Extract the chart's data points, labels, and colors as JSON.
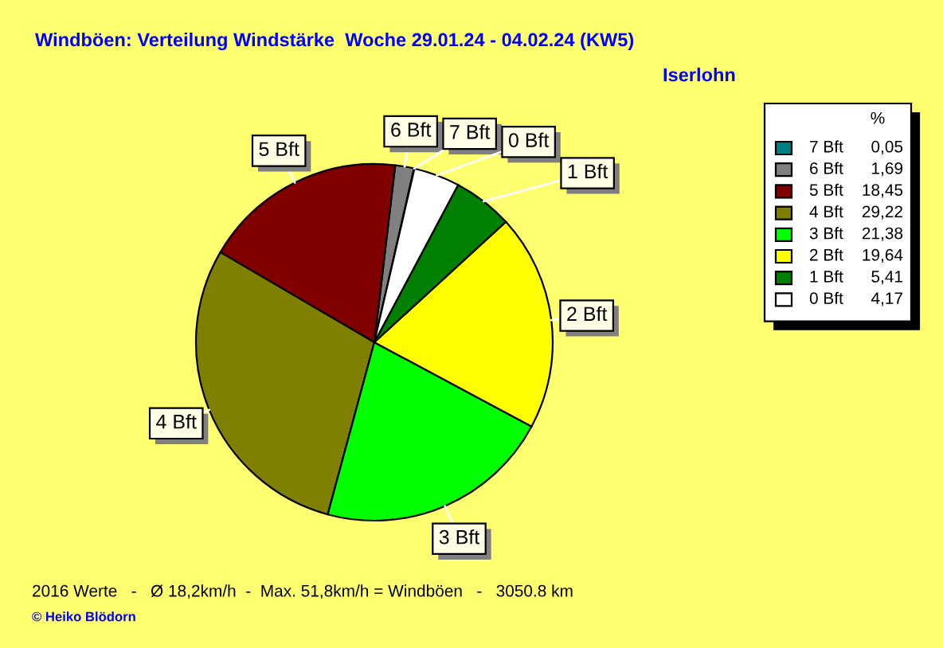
{
  "chart_data": {
    "type": "pie",
    "title": "Windböen: Verteilung Windstärke  Woche 29.01.24 - 04.02.24 (KW5)",
    "subtitle": "Iserlohn",
    "legend_title": "%",
    "categories": [
      "7 Bft",
      "6 Bft",
      "5 Bft",
      "4 Bft",
      "3 Bft",
      "2 Bft",
      "1 Bft",
      "0 Bft"
    ],
    "values": [
      0.05,
      1.69,
      18.45,
      29.22,
      21.38,
      19.64,
      5.41,
      4.17
    ],
    "value_labels": [
      "0,05",
      "1,69",
      "18,45",
      "29,22",
      "21,38",
      "19,64",
      "5,41",
      "4,17"
    ],
    "colors": [
      "#008080",
      "#808080",
      "#800000",
      "#808000",
      "#00ff00",
      "#ffff00",
      "#008000",
      "#ffffff"
    ],
    "legend": "top right",
    "annotations": [
      "2016 Werte   -   Ø 18,2km/h  -  Max. 51,8km/h = Windböen   -   3050.8 km",
      "© Heiko Blödorn"
    ]
  }
}
